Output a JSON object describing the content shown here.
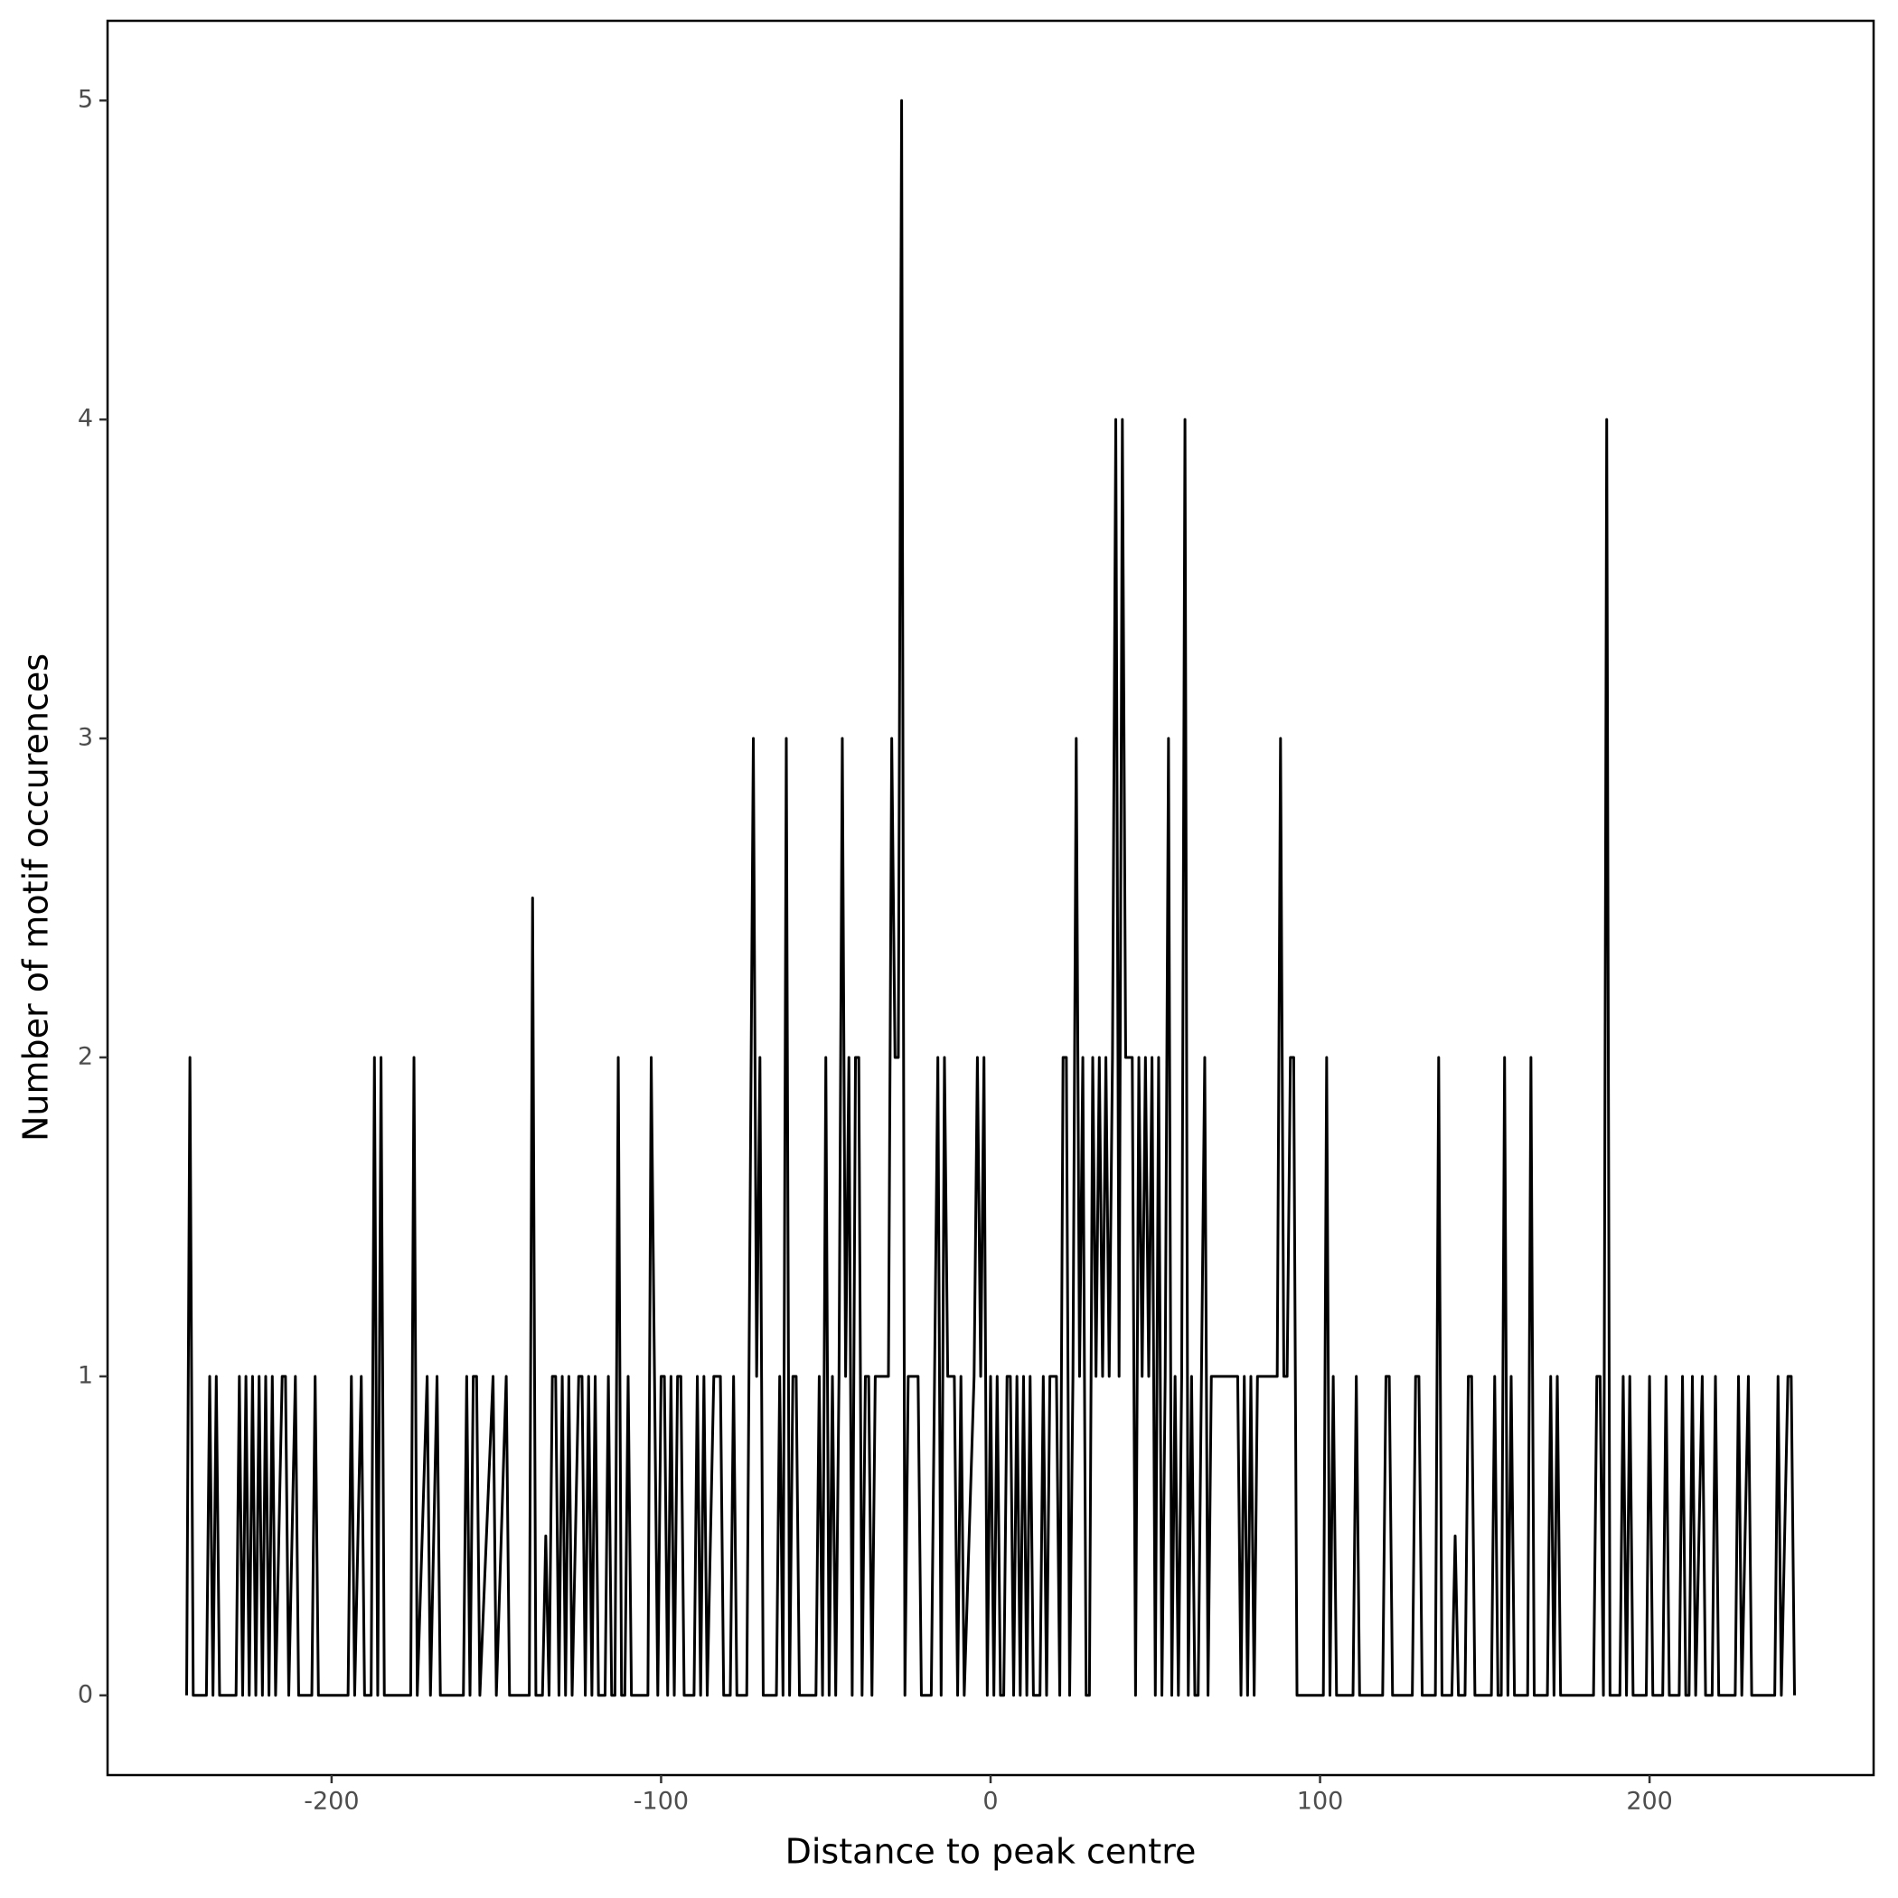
{
  "chart_data": {
    "type": "line",
    "x_label": "Distance to peak centre",
    "y_label": "Number of motif occurences",
    "color": "#000000",
    "xlim": [
      -268,
      268
    ],
    "xticks": [
      -200,
      -100,
      0,
      100,
      200
    ],
    "ylim": [
      -0.25,
      5.25
    ],
    "yticks": [
      0,
      1,
      2,
      3,
      4,
      5
    ],
    "grid": false,
    "x": [
      -244,
      -243,
      -242,
      -238,
      -237,
      -236,
      -235,
      -234,
      -229,
      -228,
      -227,
      -226,
      -225,
      -224,
      -223,
      -222,
      -221,
      -220,
      -219,
      -218,
      -217,
      -215,
      -214,
      -213,
      -211,
      -210,
      -206,
      -205,
      -204,
      -195,
      -194,
      -193,
      -191,
      -190,
      -188,
      -187,
      -186,
      -185,
      -184,
      -176,
      -175,
      -174,
      -171,
      -170,
      -168,
      -167,
      -160,
      -159,
      -158,
      -157,
      -156,
      -155,
      -151,
      -150,
      -147,
      -146,
      -140,
      -139,
      -138,
      -136,
      -135,
      -134,
      -133,
      -132,
      -131,
      -130,
      -129,
      -128,
      -127,
      -125,
      -124,
      -123,
      -122,
      -121,
      -120,
      -119,
      -117,
      -116,
      -115,
      -114,
      -113,
      -112,
      -111,
      -110,
      -109,
      -104,
      -103,
      -102,
      -101,
      -100,
      -99,
      -98,
      -97,
      -96,
      -95,
      -94,
      -93,
      -90,
      -89,
      -88,
      -87,
      -86,
      -84,
      -83,
      -82,
      -81,
      -79,
      -78,
      -77,
      -74,
      -73,
      -72,
      -71,
      -70,
      -69,
      -65,
      -64,
      -63,
      -62,
      -61,
      -60,
      -59,
      -58,
      -53,
      -52,
      -51,
      -50,
      -49,
      -48,
      -47,
      -46,
      -45,
      -44,
      -43,
      -42,
      -41,
      -40,
      -39,
      -38,
      -37,
      -36,
      -35,
      -34,
      -33,
      -32,
      -31,
      -30,
      -29,
      -28,
      -27,
      -26,
      -25,
      -24,
      -23,
      -22,
      -21,
      -18,
      -17,
      -16,
      -15,
      -14,
      -13,
      -12,
      -11,
      -10,
      -9,
      -8,
      -5,
      -4,
      -3,
      -2,
      -1,
      0,
      1,
      2,
      3,
      4,
      5,
      6,
      7,
      8,
      9,
      10,
      11,
      12,
      13,
      15,
      16,
      17,
      18,
      19,
      20,
      21,
      22,
      23,
      24,
      25,
      26,
      27,
      28,
      29,
      30,
      31,
      32,
      33,
      34,
      35,
      36,
      37,
      38,
      39,
      40,
      41,
      42,
      43,
      44,
      45,
      46,
      47,
      48,
      49,
      50,
      51,
      52,
      53,
      54,
      55,
      56,
      57,
      58,
      59,
      60,
      61,
      62,
      63,
      64,
      65,
      66,
      67,
      68,
      75,
      76,
      77,
      78,
      79,
      80,
      81,
      82,
      85,
      86,
      87,
      88,
      89,
      90,
      91,
      92,
      93,
      94,
      101,
      102,
      103,
      104,
      105,
      110,
      111,
      112,
      119,
      120,
      121,
      122,
      128,
      129,
      130,
      131,
      135,
      136,
      137,
      140,
      141,
      142,
      144,
      145,
      146,
      147,
      152,
      153,
      154,
      155,
      156,
      157,
      158,
      159,
      163,
      164,
      165,
      169,
      170,
      171,
      172,
      173,
      183,
      184,
      185,
      186,
      187,
      188,
      191,
      192,
      193,
      194,
      195,
      199,
      200,
      201,
      204,
      205,
      206,
      209,
      210,
      211,
      212,
      213,
      214,
      216,
      217,
      219,
      220,
      221,
      226,
      227,
      228,
      230,
      231,
      238,
      239,
      240,
      242,
      243,
      244
    ],
    "values": [
      0,
      2,
      0,
      0,
      1,
      0,
      1,
      0,
      0,
      1,
      0,
      1,
      0,
      1,
      0,
      1,
      0,
      1,
      0,
      1,
      0,
      1,
      1,
      0,
      1,
      0,
      0,
      1,
      0,
      0,
      1,
      0,
      1,
      0,
      0,
      2,
      0,
      2,
      0,
      0,
      2,
      0,
      1,
      0,
      1,
      0,
      0,
      1,
      0,
      1,
      1,
      0,
      1,
      0,
      1,
      0,
      0,
      2.5,
      0,
      0,
      0.5,
      0,
      1,
      1,
      0,
      1,
      0,
      1,
      0,
      1,
      1,
      0,
      1,
      0,
      1,
      0,
      0,
      1,
      0,
      0,
      2,
      0,
      0,
      1,
      0,
      0,
      2,
      1,
      0,
      1,
      1,
      0,
      1,
      0,
      1,
      1,
      0,
      0,
      1,
      0,
      1,
      0,
      1,
      1,
      1,
      0,
      0,
      1,
      0,
      0,
      1.5,
      3,
      1,
      2,
      0,
      0,
      1,
      0,
      3,
      0,
      1,
      1,
      0,
      0,
      1,
      0,
      2,
      0,
      1,
      0,
      1,
      3,
      1,
      2,
      0,
      2,
      2,
      0,
      1,
      1,
      0,
      1,
      1,
      1,
      1,
      1,
      3,
      2,
      2,
      5,
      0,
      1,
      1,
      1,
      1,
      0,
      0,
      1,
      2,
      0,
      2,
      1,
      1,
      1,
      0,
      1,
      0,
      1,
      2,
      1,
      2,
      0,
      1,
      0,
      1,
      0,
      0,
      1,
      1,
      0,
      1,
      0,
      1,
      0,
      1,
      0,
      0,
      1,
      0,
      1,
      1,
      1,
      0,
      2,
      2,
      0,
      1,
      3,
      1,
      2,
      0,
      0,
      2,
      1,
      2,
      1,
      2,
      1,
      2,
      4,
      1,
      4,
      2,
      2,
      2,
      0,
      2,
      1,
      2,
      1,
      2,
      0,
      2,
      0,
      1,
      3,
      0,
      1,
      0,
      1,
      4,
      0,
      1,
      0,
      0,
      1,
      2,
      0,
      1,
      1,
      1,
      0,
      1,
      0,
      1,
      0,
      1,
      1,
      1,
      1,
      1,
      3,
      1,
      1,
      2,
      2,
      0,
      0,
      0,
      2,
      0,
      1,
      0,
      0,
      1,
      0,
      0,
      1,
      1,
      0,
      0,
      1,
      1,
      0,
      0,
      2,
      0,
      0,
      0.5,
      0,
      0,
      1,
      1,
      0,
      0,
      1,
      0,
      0,
      2,
      0,
      1,
      0,
      0,
      2,
      0,
      0,
      1,
      0,
      1,
      0,
      0,
      1,
      1,
      0,
      4,
      0,
      0,
      1,
      0,
      1,
      0,
      0,
      1,
      0,
      0,
      1,
      0,
      0,
      1,
      0,
      0,
      1,
      0,
      1,
      0,
      0,
      1,
      0,
      0,
      1,
      0,
      1,
      0,
      0,
      1,
      0,
      1,
      1,
      0
    ]
  }
}
